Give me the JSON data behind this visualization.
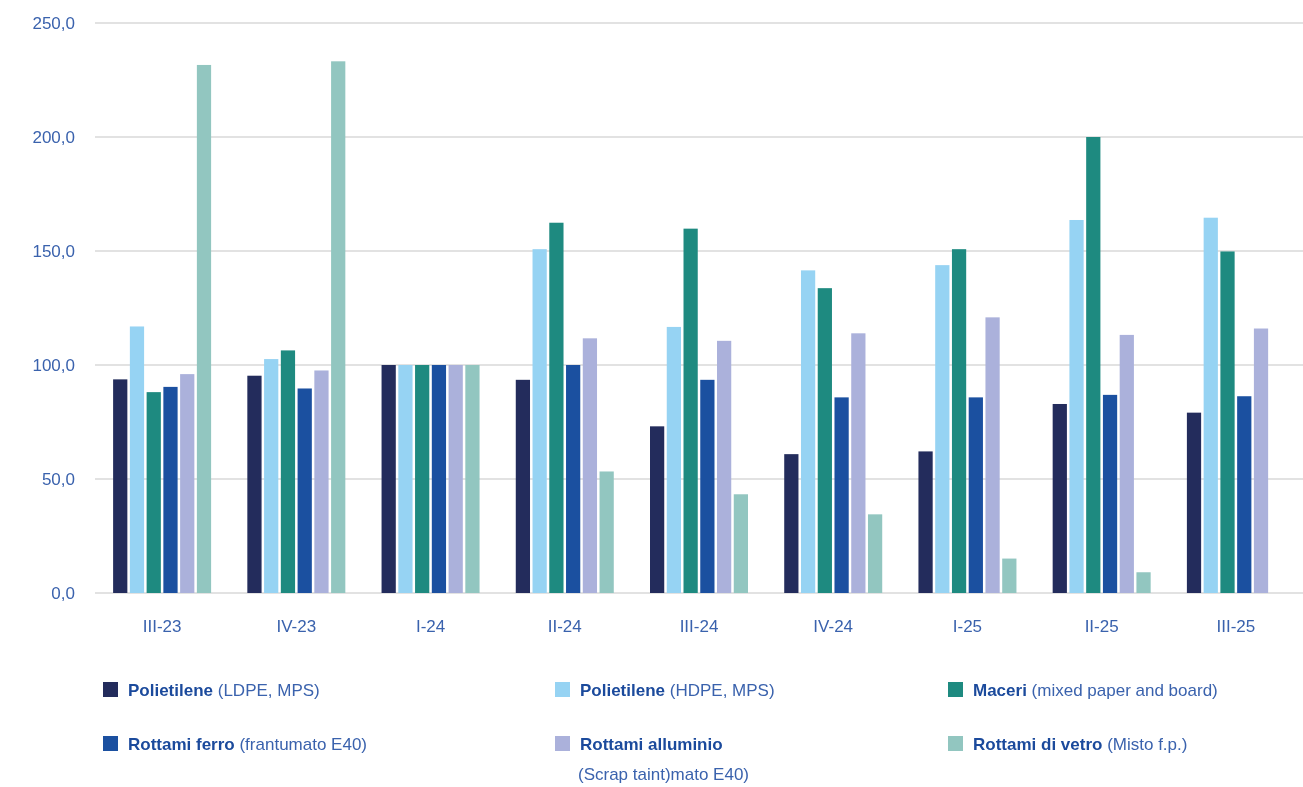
{
  "chart_data": {
    "type": "bar",
    "categories": [
      "III-23",
      "IV-23",
      "I-24",
      "II-24",
      "III-24",
      "IV-24",
      "I-25",
      "II-25",
      "III-25"
    ],
    "ylim": [
      0,
      250
    ],
    "yticks": [
      {
        "value": 0,
        "label": "0,0"
      },
      {
        "value": 50,
        "label": "50,0"
      },
      {
        "value": 100,
        "label": "100,0"
      },
      {
        "value": 150,
        "label": "150,0"
      },
      {
        "value": 200,
        "label": "200,0"
      },
      {
        "value": 250,
        "label": "250,0"
      }
    ],
    "grid": "y",
    "legend": "bottom",
    "series": [
      {
        "name": "Polietilene (LDPE, MPS)",
        "color": "#232c5c",
        "values": [
          93.7,
          95.3,
          100,
          93.5,
          73.1,
          60.9,
          62.1,
          82.9,
          79.1
        ]
      },
      {
        "name": "Polietilene (HDPE, MPS)",
        "color": "#96d3f3",
        "values": [
          116.9,
          102.6,
          100,
          150.8,
          116.7,
          141.5,
          143.8,
          163.6,
          164.6
        ]
      },
      {
        "name": "Maceri (mixed paper and board)",
        "color": "#1e8a80",
        "values": [
          88.1,
          106.4,
          100,
          162.4,
          159.8,
          133.7,
          150.8,
          200,
          149.8
        ]
      },
      {
        "name": "Rottami ferro (frantumato E40)",
        "color": "#1b50a0",
        "values": [
          90.4,
          89.7,
          100,
          100,
          93.5,
          85.8,
          85.8,
          86.9,
          86.3
        ]
      },
      {
        "name": "Rottami alluminio (Scrap taint)mato E40)",
        "color": "#abb1db",
        "values": [
          96,
          97.6,
          100,
          111.7,
          110.6,
          113.9,
          120.9,
          113.2,
          116
        ]
      },
      {
        "name": "Rottami di vetro (Misto f.p.)",
        "color": "#92c6c0",
        "values": [
          231.6,
          233.2,
          100,
          53.3,
          43.3,
          34.5,
          15.1,
          9.1,
          null
        ]
      }
    ]
  }
}
